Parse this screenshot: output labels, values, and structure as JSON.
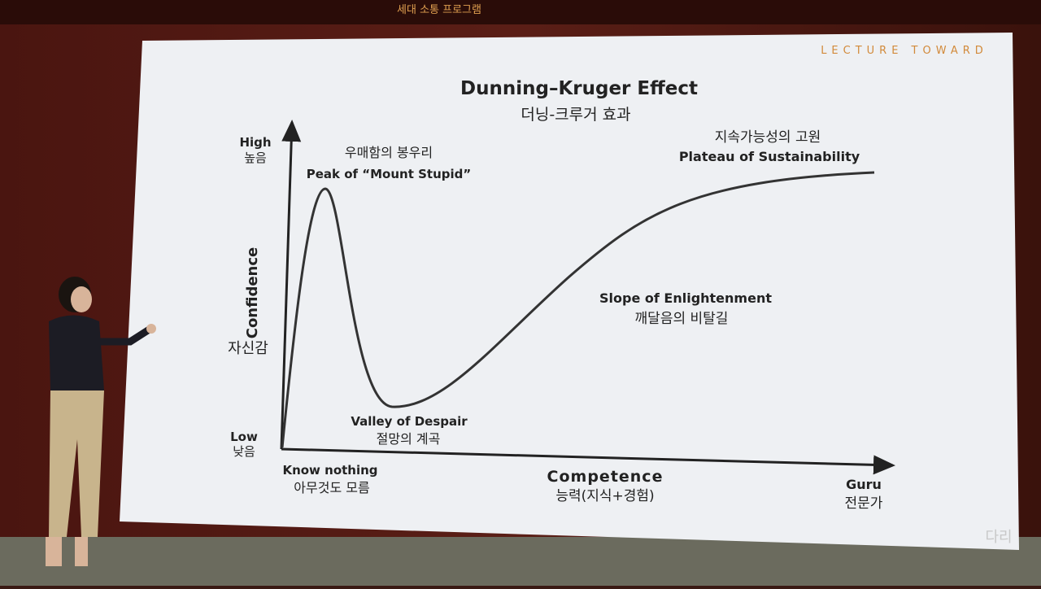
{
  "header": {
    "banner": "세대 소통 프로그램"
  },
  "slide": {
    "brand": "LECTURE TOWARD",
    "title": "Dunning–Kruger Effect",
    "subtitle": "더닝-크루거 효과",
    "y_axis": {
      "high": "High",
      "high_ko": "높음",
      "low": "Low",
      "low_ko": "낮음",
      "label": "Confidence",
      "label_ko": "자신감"
    },
    "x_axis": {
      "start": "Know nothing",
      "start_ko": "아무것도 모름",
      "label": "Competence",
      "label_ko": "능력(지식+경험)",
      "end": "Guru",
      "end_ko": "전문가"
    },
    "annotations": {
      "peak_ko": "우매함의 봉우리",
      "peak": "Peak of “Mount Stupid”",
      "valley": "Valley of Despair",
      "valley_ko": "절망의 계곡",
      "slope": "Slope of Enlightenment",
      "slope_ko": "깨달음의 비탈길",
      "plateau_ko": "지속가능성의 고원",
      "plateau": "Plateau of Sustainability"
    },
    "watermark": "다리"
  }
}
